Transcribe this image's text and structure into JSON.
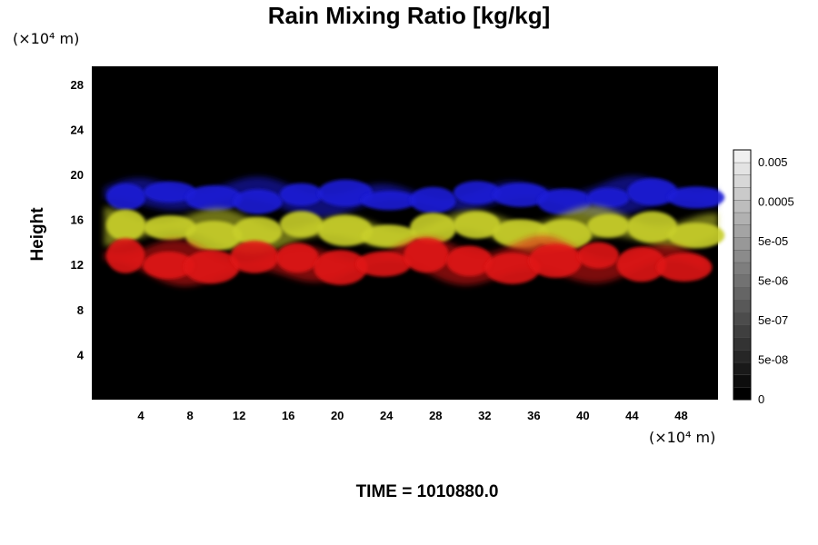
{
  "chart_data": {
    "type": "heatmap",
    "title": "Rain Mixing Ratio [kg/kg]",
    "ylabel": "Height",
    "y_unit": "(×10⁴ m)",
    "x_unit": "(×10⁴ m)",
    "x_ticks": [
      "4",
      "8",
      "12",
      "16",
      "20",
      "24",
      "28",
      "32",
      "36",
      "40",
      "44",
      "48"
    ],
    "y_ticks": [
      "4",
      "8",
      "12",
      "16",
      "20",
      "24",
      "28"
    ],
    "xlim": [
      0,
      51
    ],
    "ylim": [
      0,
      29.6
    ],
    "background_color": "#000000",
    "colorbar": {
      "tick_labels": [
        "0.005",
        "0.0005",
        "5e-05",
        "5e-06",
        "5e-07",
        "5e-08",
        "0"
      ],
      "tick_values": [
        0.005,
        0.0005,
        5e-05,
        5e-06,
        5e-07,
        5e-08,
        0
      ],
      "levels": 20
    },
    "bands": [
      {
        "color": "#1a1ad6",
        "y_range": [
          16.5,
          19.5
        ],
        "x_range": [
          1,
          51
        ]
      },
      {
        "color": "#c8cf2a",
        "y_range": [
          13.3,
          16.8
        ],
        "x_range": [
          1,
          51
        ]
      },
      {
        "color": "#e01515",
        "y_range": [
          10.3,
          14.2
        ],
        "x_range": [
          1,
          50
        ]
      }
    ],
    "time_label": "TIME = 1010880.0"
  }
}
